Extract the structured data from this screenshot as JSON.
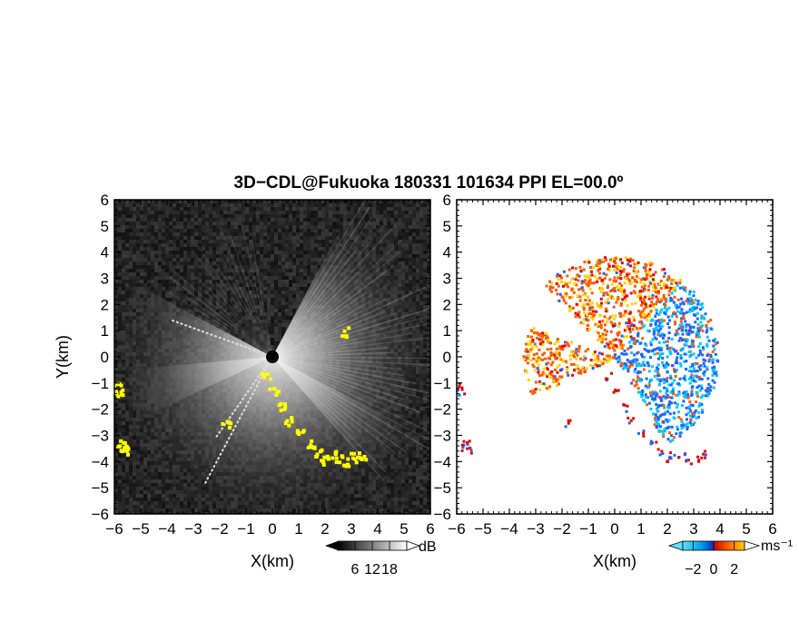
{
  "title": "3D−CDL@Fukuoka 180331 101634 PPI EL=00.0º",
  "colors": {
    "background_dark": "#0a0a0a",
    "echo_gray": "#cfcfcf",
    "clutter": "#ffff00",
    "velocity_negative": "#1e64ff",
    "velocity_cyan": "#00c8ff",
    "velocity_positive": "#ff5a00",
    "velocity_yellow": "#ffd200",
    "velocity_red": "#e60000"
  },
  "chart_data": [
    {
      "type": "heatmap",
      "name": "reflectivity-ppi",
      "xlabel": "X(km)",
      "ylabel": "Y(km)",
      "xlim": [
        -6,
        6
      ],
      "ylim": [
        -6,
        6
      ],
      "x_ticks": [
        "−6",
        "−5",
        "−4",
        "−3",
        "−2",
        "−1",
        "0",
        "1",
        "2",
        "3",
        "4",
        "5",
        "6"
      ],
      "y_ticks": [
        "−6",
        "−5",
        "−4",
        "−3",
        "−2",
        "−1",
        "0",
        "1",
        "2",
        "3",
        "4",
        "5",
        "6"
      ],
      "colorbar": {
        "unit": "dB",
        "ticks": [
          "6",
          "12",
          "18"
        ],
        "values": [
          6,
          12,
          18
        ]
      }
    },
    {
      "type": "heatmap",
      "name": "doppler-velocity-ppi",
      "xlabel": "X(km)",
      "xlim": [
        -6,
        6
      ],
      "ylim": [
        -6,
        6
      ],
      "x_ticks": [
        "−6",
        "−5",
        "−4",
        "−3",
        "−2",
        "−1",
        "0",
        "1",
        "2",
        "3",
        "4",
        "5",
        "6"
      ],
      "y_ticks": [
        "−6",
        "−5",
        "−4",
        "−3",
        "−2",
        "−1",
        "0",
        "1",
        "2",
        "3",
        "4",
        "5",
        "6"
      ],
      "colorbar": {
        "unit": "ms⁻¹",
        "ticks": [
          "−2",
          "0",
          "2"
        ],
        "values": [
          -2,
          0,
          2
        ]
      }
    }
  ]
}
